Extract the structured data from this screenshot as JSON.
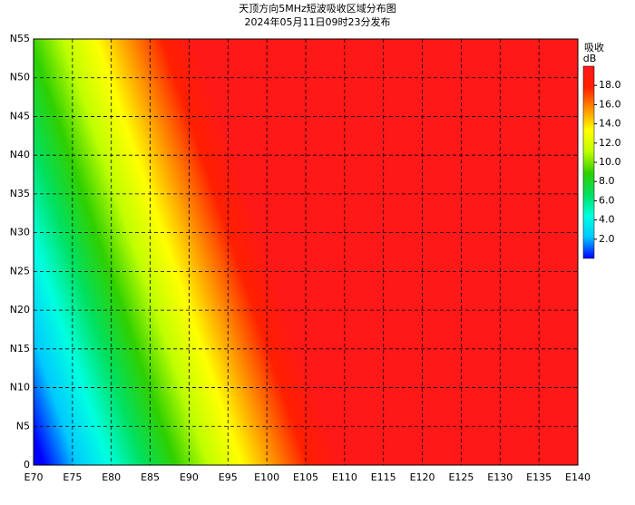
{
  "chart_data": {
    "type": "map",
    "title": "天顶方向5MHz短波吸收区域分布图",
    "subtitle": "2024年05月11日09时23分发布",
    "colorbar_label": "吸收",
    "colorbar_unit": "dB",
    "xlim": [
      70,
      140
    ],
    "ylim": [
      0,
      55
    ],
    "xticks": [
      {
        "value": 70,
        "label": "E70"
      },
      {
        "value": 75,
        "label": "E75"
      },
      {
        "value": 80,
        "label": "E80"
      },
      {
        "value": 85,
        "label": "E85"
      },
      {
        "value": 90,
        "label": "E90"
      },
      {
        "value": 95,
        "label": "E95"
      },
      {
        "value": 100,
        "label": "E100"
      },
      {
        "value": 105,
        "label": "E105"
      },
      {
        "value": 110,
        "label": "E110"
      },
      {
        "value": 115,
        "label": "E115"
      },
      {
        "value": 120,
        "label": "E120"
      },
      {
        "value": 125,
        "label": "E125"
      },
      {
        "value": 130,
        "label": "E130"
      },
      {
        "value": 135,
        "label": "E135"
      },
      {
        "value": 140,
        "label": "E140"
      }
    ],
    "yticks": [
      0,
      {
        "value": 5,
        "label": "N5"
      },
      {
        "value": 10,
        "label": "N10"
      },
      {
        "value": 15,
        "label": "N15"
      },
      {
        "value": 20,
        "label": "N20"
      },
      {
        "value": 25,
        "label": "N25"
      },
      {
        "value": 30,
        "label": "N30"
      },
      {
        "value": 35,
        "label": "N35"
      },
      {
        "value": 40,
        "label": "N40"
      },
      {
        "value": 45,
        "label": "N45"
      },
      {
        "value": 50,
        "label": "N50"
      },
      {
        "value": 55,
        "label": "N55"
      }
    ],
    "clim": [
      0,
      20
    ],
    "cticks": [
      {
        "value": 2,
        "label": "2.0"
      },
      {
        "value": 4,
        "label": "4.0"
      },
      {
        "value": 6,
        "label": "6.0"
      },
      {
        "value": 8,
        "label": "8.0"
      },
      {
        "value": 10,
        "label": "10.0"
      },
      {
        "value": 12,
        "label": "12.0"
      },
      {
        "value": 14,
        "label": "14.0"
      },
      {
        "value": 16,
        "label": "16.0"
      },
      {
        "value": 18,
        "label": "18.0"
      }
    ],
    "colormap": [
      "#0000ff",
      "#00c8ff",
      "#00ffe0",
      "#00e060",
      "#30d000",
      "#c0ff00",
      "#ffff00",
      "#ff9000",
      "#ff2000",
      "#ff1818"
    ],
    "grid": true
  }
}
